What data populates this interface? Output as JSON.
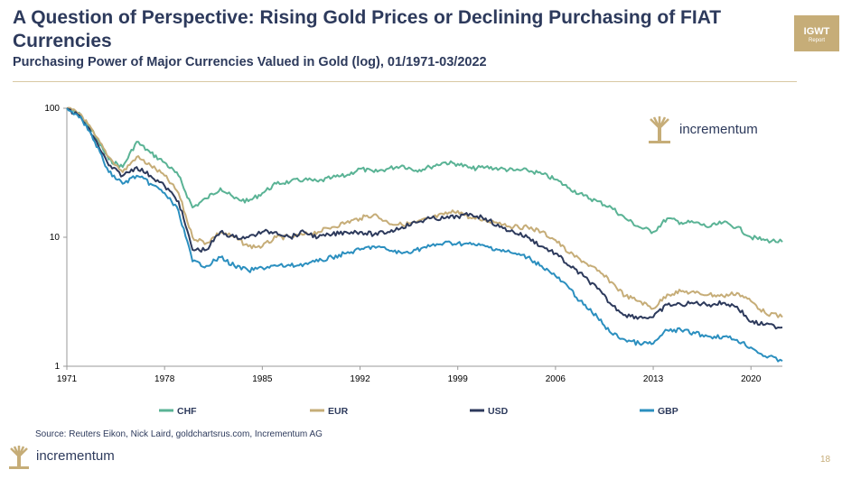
{
  "header": {
    "title": "A Question of Perspective: Rising Gold Prices or Declining Purchasing of FIAT Currencies",
    "subtitle": "Purchasing Power of Major Currencies Valued in Gold (log), 01/1971-03/2022",
    "badge_main": "IGWT",
    "badge_sub": "Report"
  },
  "logo_text": "incrementum",
  "source": "Source: Reuters Eikon, Nick Laird, goldchartsrus.com, Incrementum AG",
  "page_number": "18",
  "colors": {
    "CHF": "#5ab395",
    "EUR": "#c6ad78",
    "USD": "#2d3a5c",
    "GBP": "#2b8fbf",
    "gold": "#c6ad78",
    "navy": "#2d3a5c"
  },
  "chart_data": {
    "type": "line",
    "scale": "log",
    "ylim": [
      1,
      100
    ],
    "xlim": [
      1971,
      2022.25
    ],
    "yticks": [
      {
        "v": 1,
        "label": "1"
      },
      {
        "v": 10,
        "label": "10"
      },
      {
        "v": 100,
        "label": "100"
      }
    ],
    "xticks": [
      {
        "v": 1971,
        "label": "1971"
      },
      {
        "v": 1978,
        "label": "1978"
      },
      {
        "v": 1985,
        "label": "1985"
      },
      {
        "v": 1992,
        "label": "1992"
      },
      {
        "v": 1999,
        "label": "1999"
      },
      {
        "v": 2006,
        "label": "2006"
      },
      {
        "v": 2013,
        "label": "2013"
      },
      {
        "v": 2020,
        "label": "2020"
      }
    ],
    "x": [
      1971,
      1972,
      1973,
      1974,
      1975,
      1976,
      1977,
      1978,
      1979,
      1980,
      1981,
      1982,
      1983,
      1984,
      1985,
      1986,
      1987,
      1988,
      1989,
      1990,
      1991,
      1992,
      1993,
      1994,
      1995,
      1996,
      1997,
      1998,
      1999,
      2000,
      2001,
      2002,
      2003,
      2004,
      2005,
      2006,
      2007,
      2008,
      2009,
      2010,
      2011,
      2012,
      2013,
      2014,
      2015,
      2016,
      2017,
      2018,
      2019,
      2020,
      2021,
      2022.25
    ],
    "series": [
      {
        "name": "CHF",
        "values": [
          100,
          88,
          62,
          40,
          35,
          55,
          45,
          38,
          30,
          17,
          20,
          24,
          20,
          19,
          22,
          26,
          27,
          28,
          27,
          29,
          30,
          34,
          32,
          34,
          36,
          33,
          35,
          38,
          37,
          34,
          35,
          34,
          33,
          33,
          31,
          28,
          24,
          21,
          19,
          17,
          14,
          12,
          11,
          14,
          13,
          13,
          12,
          13,
          12,
          10,
          9.5,
          9.2
        ]
      },
      {
        "name": "EUR",
        "values": [
          100,
          90,
          62,
          42,
          32,
          42,
          36,
          30,
          22,
          10,
          9,
          11,
          10,
          8.5,
          8.5,
          10,
          10,
          10.5,
          11,
          12,
          13,
          14,
          15,
          13,
          12.5,
          13,
          14,
          15,
          16,
          14,
          13.5,
          13,
          12,
          12,
          11,
          9.5,
          7.5,
          6.5,
          5.5,
          4.5,
          3.5,
          3.2,
          2.8,
          3.6,
          3.8,
          3.7,
          3.6,
          3.5,
          3.7,
          3.2,
          2.6,
          2.4
        ]
      },
      {
        "name": "USD",
        "values": [
          100,
          85,
          58,
          36,
          30,
          35,
          30,
          25,
          19,
          8,
          8,
          11,
          10,
          10,
          11,
          11,
          10,
          11,
          10,
          10.5,
          11,
          11,
          10.5,
          11,
          12,
          13,
          14,
          14,
          14.5,
          15,
          14,
          12,
          11,
          10,
          8.5,
          7.5,
          6,
          5,
          4,
          3,
          2.5,
          2.4,
          2.4,
          3,
          3,
          3.1,
          3,
          3.1,
          2.9,
          2.2,
          2.1,
          2.0
        ]
      },
      {
        "name": "GBP",
        "values": [
          100,
          86,
          55,
          32,
          26,
          30,
          26,
          22,
          16,
          6.5,
          6,
          7,
          6,
          5.5,
          5.8,
          6,
          6,
          6.2,
          6.5,
          7,
          7.5,
          8,
          8.5,
          8,
          7.5,
          8,
          8.5,
          9,
          9,
          8.8,
          8.5,
          8,
          7.5,
          7,
          6,
          5,
          4,
          3,
          2.4,
          1.8,
          1.6,
          1.5,
          1.5,
          1.9,
          1.9,
          1.8,
          1.7,
          1.7,
          1.6,
          1.4,
          1.2,
          1.1
        ]
      }
    ]
  }
}
